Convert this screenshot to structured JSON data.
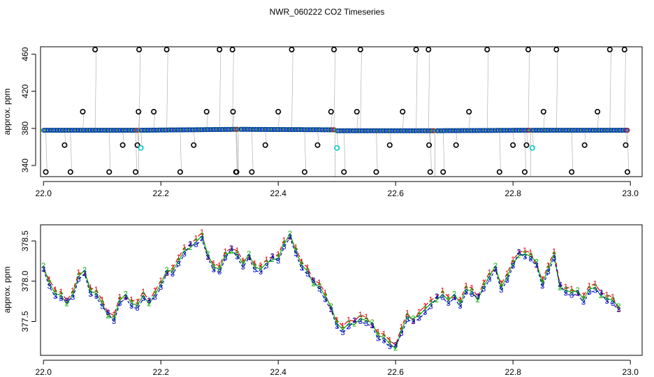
{
  "title": "NWR_060222  CO2 Timeseries",
  "chart_data": [
    {
      "type": "scatter",
      "panel": "top",
      "ylabel": "approx. ppm",
      "xlim": [
        21.995,
        23.02
      ],
      "ylim": [
        328,
        468
      ],
      "xticks": [
        22.0,
        22.2,
        22.4,
        22.6,
        22.8,
        23.0
      ],
      "xtick_labels": [
        "22.0",
        "22.2",
        "22.4",
        "22.6",
        "22.8",
        "23.0"
      ],
      "yticks": [
        340,
        380,
        420,
        460
      ],
      "ytick_labels": [
        "340",
        "380",
        "420",
        "460"
      ],
      "baseline_segments": [
        {
          "x": [
            22.0,
            22.16
          ],
          "y": [
            378,
            378
          ]
        },
        {
          "x": [
            22.165,
            22.33
          ],
          "y": [
            378,
            379
          ]
        },
        {
          "x": [
            22.335,
            22.495
          ],
          "y": [
            379,
            378.5
          ]
        },
        {
          "x": [
            22.5,
            22.665
          ],
          "y": [
            377.5,
            377.5
          ]
        },
        {
          "x": [
            22.67,
            22.828
          ],
          "y": [
            377.5,
            378
          ]
        },
        {
          "x": [
            22.832,
            22.995
          ],
          "y": [
            378,
            378
          ]
        }
      ],
      "series": [
        {
          "name": "outliers",
          "color": "#000000",
          "marker": "circle",
          "points": [
            [
              22.004,
              333
            ],
            [
              22.036,
              362
            ],
            [
              22.046,
              333
            ],
            [
              22.067,
              398
            ],
            [
              22.088,
              465
            ],
            [
              22.112,
              333
            ],
            [
              22.135,
              362
            ],
            [
              22.157,
              333
            ],
            [
              22.16,
              362
            ],
            [
              22.162,
              398
            ],
            [
              22.163,
              465
            ],
            [
              22.188,
              398
            ],
            [
              22.21,
              465
            ],
            [
              22.233,
              333
            ],
            [
              22.256,
              362
            ],
            [
              22.278,
              398
            ],
            [
              22.3,
              465
            ],
            [
              22.322,
              465
            ],
            [
              22.323,
              398
            ],
            [
              22.328,
              333
            ],
            [
              22.329,
              333
            ],
            [
              22.355,
              333
            ],
            [
              22.378,
              362
            ],
            [
              22.4,
              398
            ],
            [
              22.423,
              465
            ],
            [
              22.445,
              333
            ],
            [
              22.467,
              362
            ],
            [
              22.49,
              398
            ],
            [
              22.495,
              465
            ],
            [
              22.512,
              333
            ],
            [
              22.534,
              398
            ],
            [
              22.54,
              465
            ],
            [
              22.567,
              333
            ],
            [
              22.59,
              362
            ],
            [
              22.612,
              398
            ],
            [
              22.635,
              465
            ],
            [
              22.656,
              465
            ],
            [
              22.657,
              362
            ],
            [
              22.659,
              333
            ],
            [
              22.681,
              333
            ],
            [
              22.703,
              362
            ],
            [
              22.725,
              398
            ],
            [
              22.756,
              465
            ],
            [
              22.777,
              333
            ],
            [
              22.8,
              362
            ],
            [
              22.82,
              333
            ],
            [
              22.823,
              362
            ],
            [
              22.826,
              465
            ],
            [
              22.852,
              398
            ],
            [
              22.874,
              465
            ],
            [
              22.9,
              333
            ],
            [
              22.922,
              362
            ],
            [
              22.944,
              398
            ],
            [
              22.965,
              465
            ],
            [
              22.99,
              465
            ],
            [
              22.992,
              362
            ],
            [
              22.995,
              333
            ]
          ]
        },
        {
          "name": "cyan",
          "color": "#00cccc",
          "marker": "circle",
          "points": [
            [
              22.166,
              359
            ],
            [
              22.5,
              359
            ],
            [
              22.833,
              359
            ]
          ]
        }
      ]
    },
    {
      "type": "line",
      "panel": "bottom",
      "ylabel": "approx. ppm",
      "xlim": [
        21.995,
        23.02
      ],
      "ylim": [
        377.08,
        378.7
      ],
      "xticks": [
        22.0,
        22.2,
        22.4,
        22.6,
        22.8,
        23.0
      ],
      "xtick_labels": [
        "22.0",
        "22.2",
        "22.4",
        "22.6",
        "22.8",
        "23.0"
      ],
      "yticks": [
        377.5,
        378.0,
        378.5
      ],
      "ytick_labels": [
        "377.5",
        "378.0",
        "378.5"
      ],
      "series": [
        {
          "marker_label": "1",
          "color": "#dd0000",
          "dash": "6,4",
          "offset": 0.03
        },
        {
          "marker_label": "2",
          "color": "#00aa00",
          "dash": "",
          "offset": 0.0
        },
        {
          "marker_label": "3",
          "color": "#0000cc",
          "dash": "4,3",
          "offset": -0.03
        }
      ],
      "x": [
        22.0,
        22.01,
        22.02,
        22.03,
        22.04,
        22.05,
        22.06,
        22.07,
        22.08,
        22.09,
        22.1,
        22.11,
        22.12,
        22.13,
        22.14,
        22.15,
        22.16,
        22.17,
        22.18,
        22.19,
        22.2,
        22.21,
        22.22,
        22.23,
        22.24,
        22.25,
        22.26,
        22.27,
        22.28,
        22.29,
        22.3,
        22.31,
        22.32,
        22.33,
        22.34,
        22.35,
        22.36,
        22.37,
        22.38,
        22.39,
        22.4,
        22.41,
        22.42,
        22.43,
        22.44,
        22.45,
        22.46,
        22.47,
        22.48,
        22.49,
        22.5,
        22.51,
        22.52,
        22.53,
        22.54,
        22.55,
        22.56,
        22.57,
        22.58,
        22.59,
        22.6,
        22.61,
        22.62,
        22.63,
        22.64,
        22.65,
        22.66,
        22.67,
        22.68,
        22.69,
        22.7,
        22.71,
        22.72,
        22.73,
        22.74,
        22.75,
        22.76,
        22.77,
        22.78,
        22.79,
        22.8,
        22.81,
        22.82,
        22.83,
        22.84,
        22.85,
        22.86,
        22.87,
        22.88,
        22.89,
        22.9,
        22.91,
        22.92,
        22.93,
        22.94,
        22.95,
        22.96,
        22.97,
        22.98
      ],
      "values": [
        378.15,
        378.0,
        377.85,
        377.8,
        377.75,
        377.85,
        378.05,
        378.1,
        377.9,
        377.85,
        377.7,
        377.6,
        377.55,
        377.75,
        377.8,
        377.75,
        377.7,
        377.8,
        377.75,
        377.85,
        377.95,
        378.1,
        378.15,
        378.25,
        378.35,
        378.45,
        378.5,
        378.55,
        378.3,
        378.2,
        378.15,
        378.3,
        378.4,
        378.35,
        378.2,
        378.3,
        378.2,
        378.15,
        378.2,
        378.3,
        378.3,
        378.45,
        378.55,
        378.4,
        378.2,
        378.1,
        378.0,
        377.95,
        377.8,
        377.65,
        377.5,
        377.4,
        377.45,
        377.5,
        377.55,
        377.5,
        377.45,
        377.35,
        377.3,
        377.2,
        377.2,
        377.4,
        377.55,
        377.5,
        377.6,
        377.65,
        377.7,
        377.8,
        377.85,
        377.75,
        377.8,
        377.75,
        377.9,
        377.85,
        377.8,
        377.95,
        378.05,
        378.15,
        377.95,
        378.05,
        378.2,
        378.35,
        378.35,
        378.3,
        378.2,
        378.0,
        378.15,
        378.3,
        377.95,
        377.9,
        377.85,
        377.85,
        377.8,
        377.9,
        377.9,
        377.85,
        377.8,
        377.75,
        377.65
      ]
    }
  ]
}
